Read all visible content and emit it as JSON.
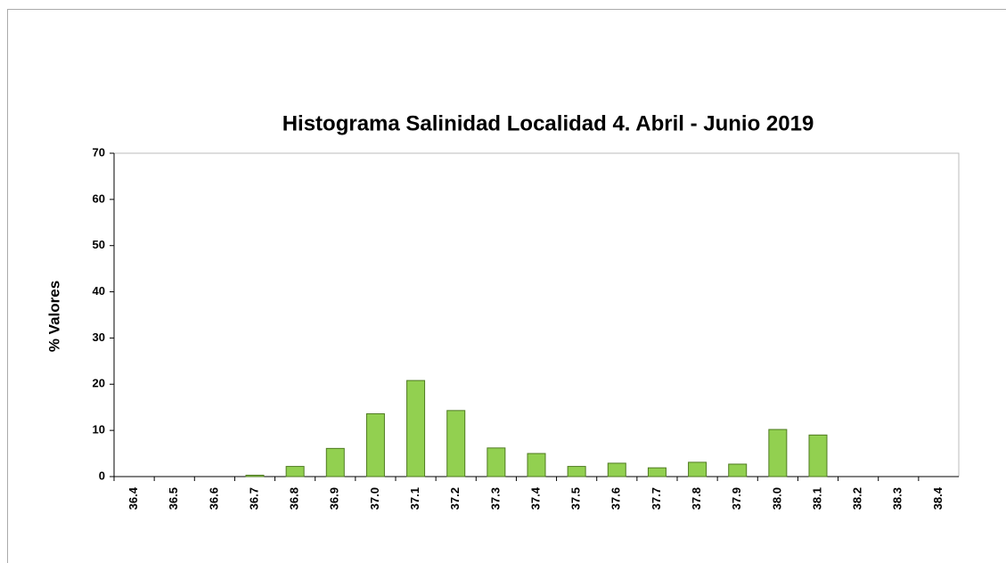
{
  "chart_data": {
    "type": "bar",
    "title": "Histograma Salinidad Localidad 4. Abril - Junio 2019",
    "y_label": "% Valores",
    "categories": [
      "36.4",
      "36.5",
      "36.6",
      "36.7",
      "36.8",
      "36.9",
      "37.0",
      "37.1",
      "37.2",
      "37.3",
      "37.4",
      "37.5",
      "37.6",
      "37.7",
      "37.8",
      "37.9",
      "38.0",
      "38.1",
      "38.2",
      "38.3",
      "38.4"
    ],
    "values": [
      0,
      0,
      0,
      0.3,
      2.2,
      6.1,
      13.6,
      20.8,
      14.3,
      6.2,
      5.0,
      2.2,
      2.9,
      1.9,
      3.1,
      2.7,
      10.2,
      9.0,
      0,
      0,
      0
    ],
    "color": "#92d050",
    "ylim": [
      0,
      70
    ],
    "yticks": [
      0,
      10,
      20,
      30,
      40,
      50,
      60,
      70
    ],
    "grid": false
  }
}
